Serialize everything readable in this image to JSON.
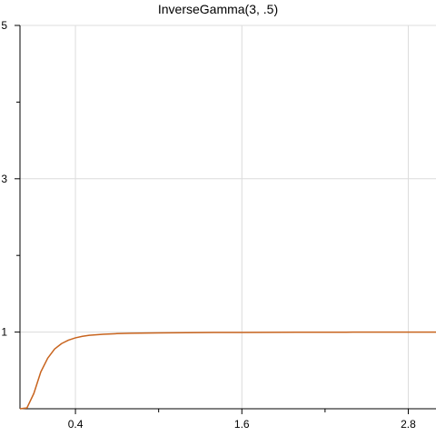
{
  "chart_data": {
    "type": "line",
    "title": "InverseGamma(3, .5)",
    "xlabel": "",
    "ylabel": "",
    "xlim": [
      -0.0,
      3.0
    ],
    "ylim": [
      0,
      5
    ],
    "x_ticks": [
      {
        "value": 0.4,
        "label": "0.4"
      },
      {
        "value": 1.6,
        "label": "1.6"
      },
      {
        "value": 2.8,
        "label": "2.8"
      }
    ],
    "x_minor_ticks": [
      1.0,
      2.2
    ],
    "y_ticks": [
      {
        "value": 1,
        "label": "1"
      },
      {
        "value": 3,
        "label": "3"
      },
      {
        "value": 5,
        "label": "5"
      }
    ],
    "y_minor_ticks": [
      2,
      4
    ],
    "grid": true,
    "series": [
      {
        "color": "#c8641e",
        "x": [
          0.0,
          0.05,
          0.1,
          0.15,
          0.2,
          0.25,
          0.3,
          0.35,
          0.4,
          0.45,
          0.5,
          0.6,
          0.7,
          0.8,
          1.0,
          1.2,
          1.4,
          1.6,
          1.8,
          2.0,
          2.4,
          2.8,
          3.0
        ],
        "values": [
          0.0,
          0.01,
          0.2,
          0.48,
          0.66,
          0.78,
          0.85,
          0.895,
          0.925,
          0.945,
          0.958,
          0.972,
          0.98,
          0.985,
          0.99,
          0.993,
          0.995,
          0.996,
          0.997,
          0.998,
          0.999,
          0.999,
          0.999
        ]
      }
    ]
  }
}
